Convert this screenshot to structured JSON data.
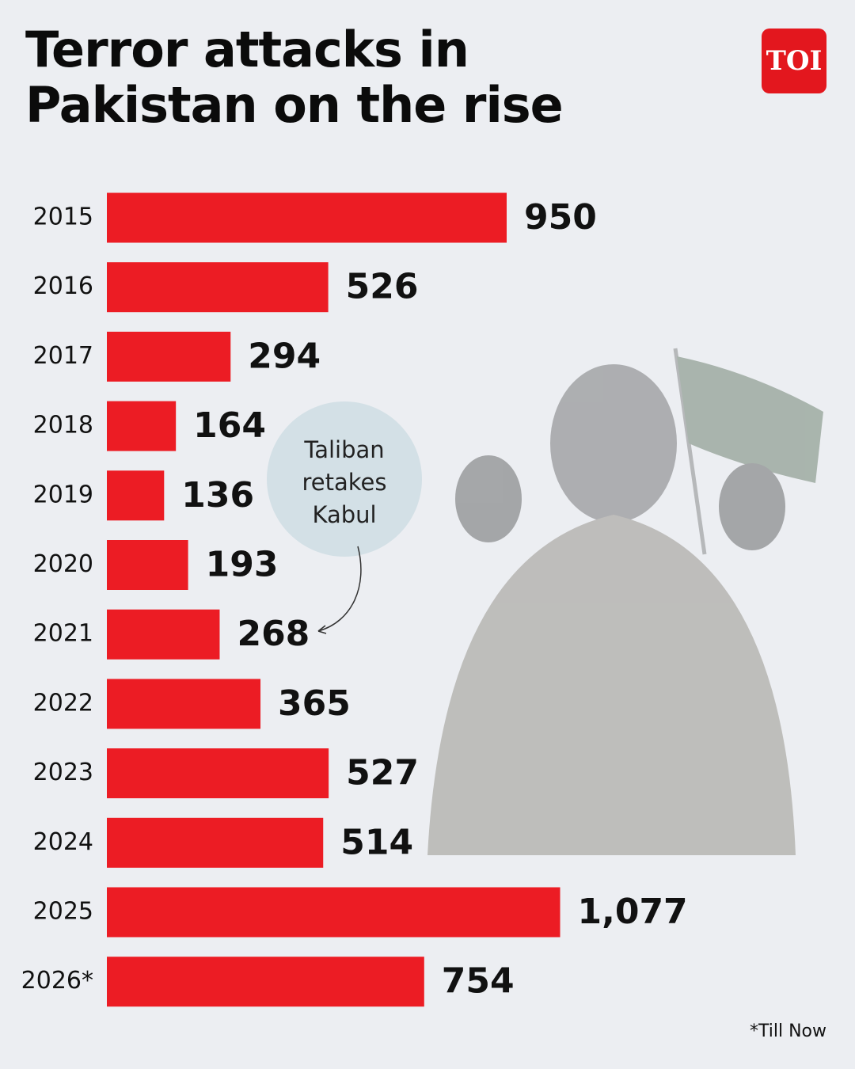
{
  "logo": "TOI",
  "chart_data": {
    "type": "bar",
    "orientation": "horizontal",
    "title": "Terror attacks in Pakistan on the rise",
    "annotation": "Taliban retakes Kabul",
    "footnote": "*Till Now",
    "categories": [
      "2015",
      "2016",
      "2017",
      "2018",
      "2019",
      "2020",
      "2021",
      "2022",
      "2023",
      "2024",
      "2025",
      "2026*"
    ],
    "values": [
      950,
      526,
      294,
      164,
      136,
      193,
      268,
      365,
      527,
      514,
      1077,
      754
    ],
    "value_labels": [
      "950",
      "526",
      "294",
      "164",
      "136",
      "193",
      "268",
      "365",
      "527",
      "514",
      "1,077",
      "754"
    ],
    "color": "#ec1c24"
  }
}
